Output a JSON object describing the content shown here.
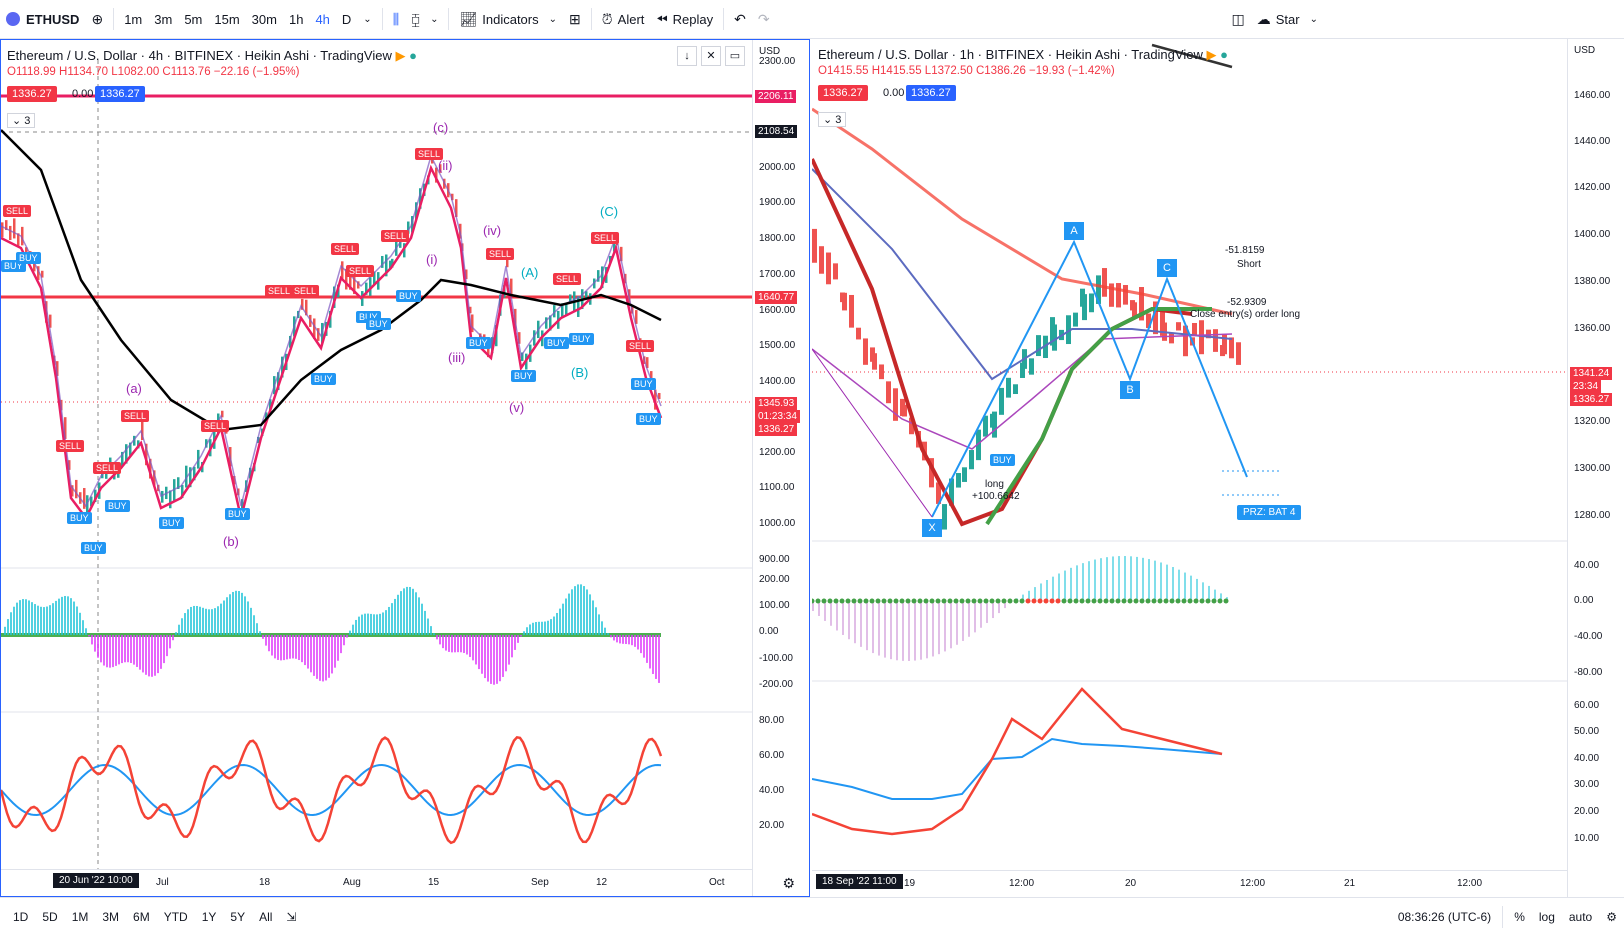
{
  "toolbar": {
    "symbol": "ETHUSD",
    "intervals": [
      "1m",
      "3m",
      "5m",
      "15m",
      "30m",
      "1h",
      "4h",
      "D"
    ],
    "selected_interval": "4h",
    "indicators_label": "Indicators",
    "alert_label": "Alert",
    "replay_label": "Replay",
    "layout_name": "Star"
  },
  "left": {
    "title": "Ethereum / U.S. Dollar · 4h · BITFINEX · Heikin Ashi · TradingView",
    "ohlc": {
      "o": "O1118.99",
      "h": "H1134.70",
      "l": "L1082.00",
      "c": "C1113.76",
      "chg": "−22.16 (−1.95%)"
    },
    "bid": "1336.27",
    "spread": "0.00",
    "ask": "1336.27",
    "collapse": "3",
    "currency": "USD",
    "price_labels": [
      "2300.00",
      "2000.00",
      "1900.00",
      "1800.00",
      "1700.00",
      "1600.00",
      "1500.00",
      "1400.00",
      "1300.00",
      "1200.00",
      "1100.00",
      "1000.00",
      "900.00"
    ],
    "hline_top": "2206.11",
    "hline_cross": "2108.54",
    "hline_mid": "1640.77",
    "last_price": "1345.93",
    "countdown": "01:23:34",
    "last_close": "1336.27",
    "osc_labels": [
      "200.00",
      "100.00",
      "0.00",
      "-100.00",
      "-200.00"
    ],
    "rsi_labels": [
      "80.00",
      "60.00",
      "40.00",
      "20.00"
    ],
    "time_labels": [
      "Jul",
      "18",
      "Aug",
      "15",
      "Sep",
      "12",
      "Oct"
    ],
    "time_cursor": "20 Jun '22   10:00",
    "waves": [
      "(a)",
      "(b)",
      "(c)",
      "(ii)",
      "(i)",
      "(iii)",
      "(iv)",
      "(v)",
      "(A)",
      "(B)",
      "(C)"
    ],
    "sell": "SELL",
    "buy": "BUY"
  },
  "right": {
    "title": "Ethereum / U.S. Dollar · 1h · BITFINEX · Heikin Ashi · TradingView",
    "ohlc": {
      "o": "O1415.55",
      "h": "H1415.55",
      "l": "L1372.50",
      "c": "C1386.26",
      "chg": "−19.93 (−1.42%)"
    },
    "bid": "1336.27",
    "spread": "0.00",
    "ask": "1336.27",
    "collapse": "3",
    "currency": "USD",
    "price_labels": [
      "1460.00",
      "1440.00",
      "1420.00",
      "1400.00",
      "1380.00",
      "1360.00",
      "1340.00",
      "1320.00",
      "1300.00",
      "1280.00"
    ],
    "last_price": "1341.24",
    "countdown": "23:34",
    "last_close": "1336.27",
    "osc_labels": [
      "40.00",
      "0.00",
      "-40.00",
      "-80.00"
    ],
    "rsi_labels": [
      "60.00",
      "50.00",
      "40.00",
      "30.00",
      "20.00",
      "10.00"
    ],
    "time_labels": [
      "19",
      "12:00",
      "20",
      "12:00",
      "21",
      "12:00"
    ],
    "time_cursor": "18 Sep '22   11:00",
    "points": [
      "X",
      "A",
      "B",
      "C"
    ],
    "buy": "BUY",
    "long_label": "long",
    "long_value": "+100.6642",
    "short_value": "-51.8159",
    "short_label": "Short",
    "close_value": "-52.9309",
    "close_label": "Close entry(s) order long",
    "prz": "PRZ: BAT 4"
  },
  "bottom": {
    "ranges": [
      "1D",
      "5D",
      "1M",
      "3M",
      "6M",
      "YTD",
      "1Y",
      "5Y",
      "All"
    ],
    "clock": "08:36:26 (UTC-6)",
    "percent": "%",
    "log": "log",
    "auto": "auto"
  },
  "colors": {
    "accent": "#2962ff",
    "red": "#f23645",
    "green": "#26a69a",
    "blue": "#2196f3",
    "purple": "#9c27b0"
  }
}
